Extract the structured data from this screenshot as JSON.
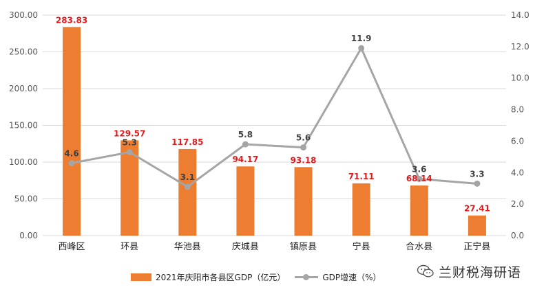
{
  "chart_data": {
    "type": "bar",
    "categories": [
      "西峰区",
      "环县",
      "华池县",
      "庆城县",
      "镇原县",
      "宁县",
      "合水县",
      "正宁县"
    ],
    "series": [
      {
        "name": "2021年庆阳市各县区GDP（亿元）",
        "kind": "bar",
        "axis": "left",
        "values": [
          283.83,
          129.57,
          117.85,
          94.17,
          93.18,
          71.11,
          68.14,
          27.41
        ],
        "labels": [
          "283.83",
          "129.57",
          "117.85",
          "94.17",
          "93.18",
          "71.11",
          "68.14",
          "27.41"
        ],
        "color": "#ED7D31",
        "label_color": "#E31A1C"
      },
      {
        "name": "GDP增速（%）",
        "kind": "line",
        "axis": "right",
        "values": [
          4.6,
          5.3,
          3.1,
          5.8,
          5.6,
          11.9,
          3.6,
          3.3
        ],
        "labels": [
          "4.6",
          "5.3",
          "3.1",
          "5.8",
          "5.6",
          "11.9",
          "3.6",
          "3.3"
        ],
        "color": "#A5A5A5",
        "label_color": "#404040"
      }
    ],
    "y_left": {
      "lim": [
        0,
        300
      ],
      "ticks": [
        0,
        50,
        100,
        150,
        200,
        250,
        300
      ],
      "tick_labels": [
        "0.00",
        "50.00",
        "100.00",
        "150.00",
        "200.00",
        "250.00",
        "300.00"
      ]
    },
    "y_right": {
      "lim": [
        0,
        14
      ],
      "ticks": [
        0,
        2,
        4,
        6,
        8,
        10,
        12,
        14
      ],
      "tick_labels": [
        "0.0",
        "2.0",
        "4.0",
        "6.0",
        "8.0",
        "10.0",
        "12.0",
        "14.0"
      ]
    },
    "grid": true,
    "legend_position": "bottom"
  },
  "watermark": {
    "text": "兰财税海研语"
  }
}
